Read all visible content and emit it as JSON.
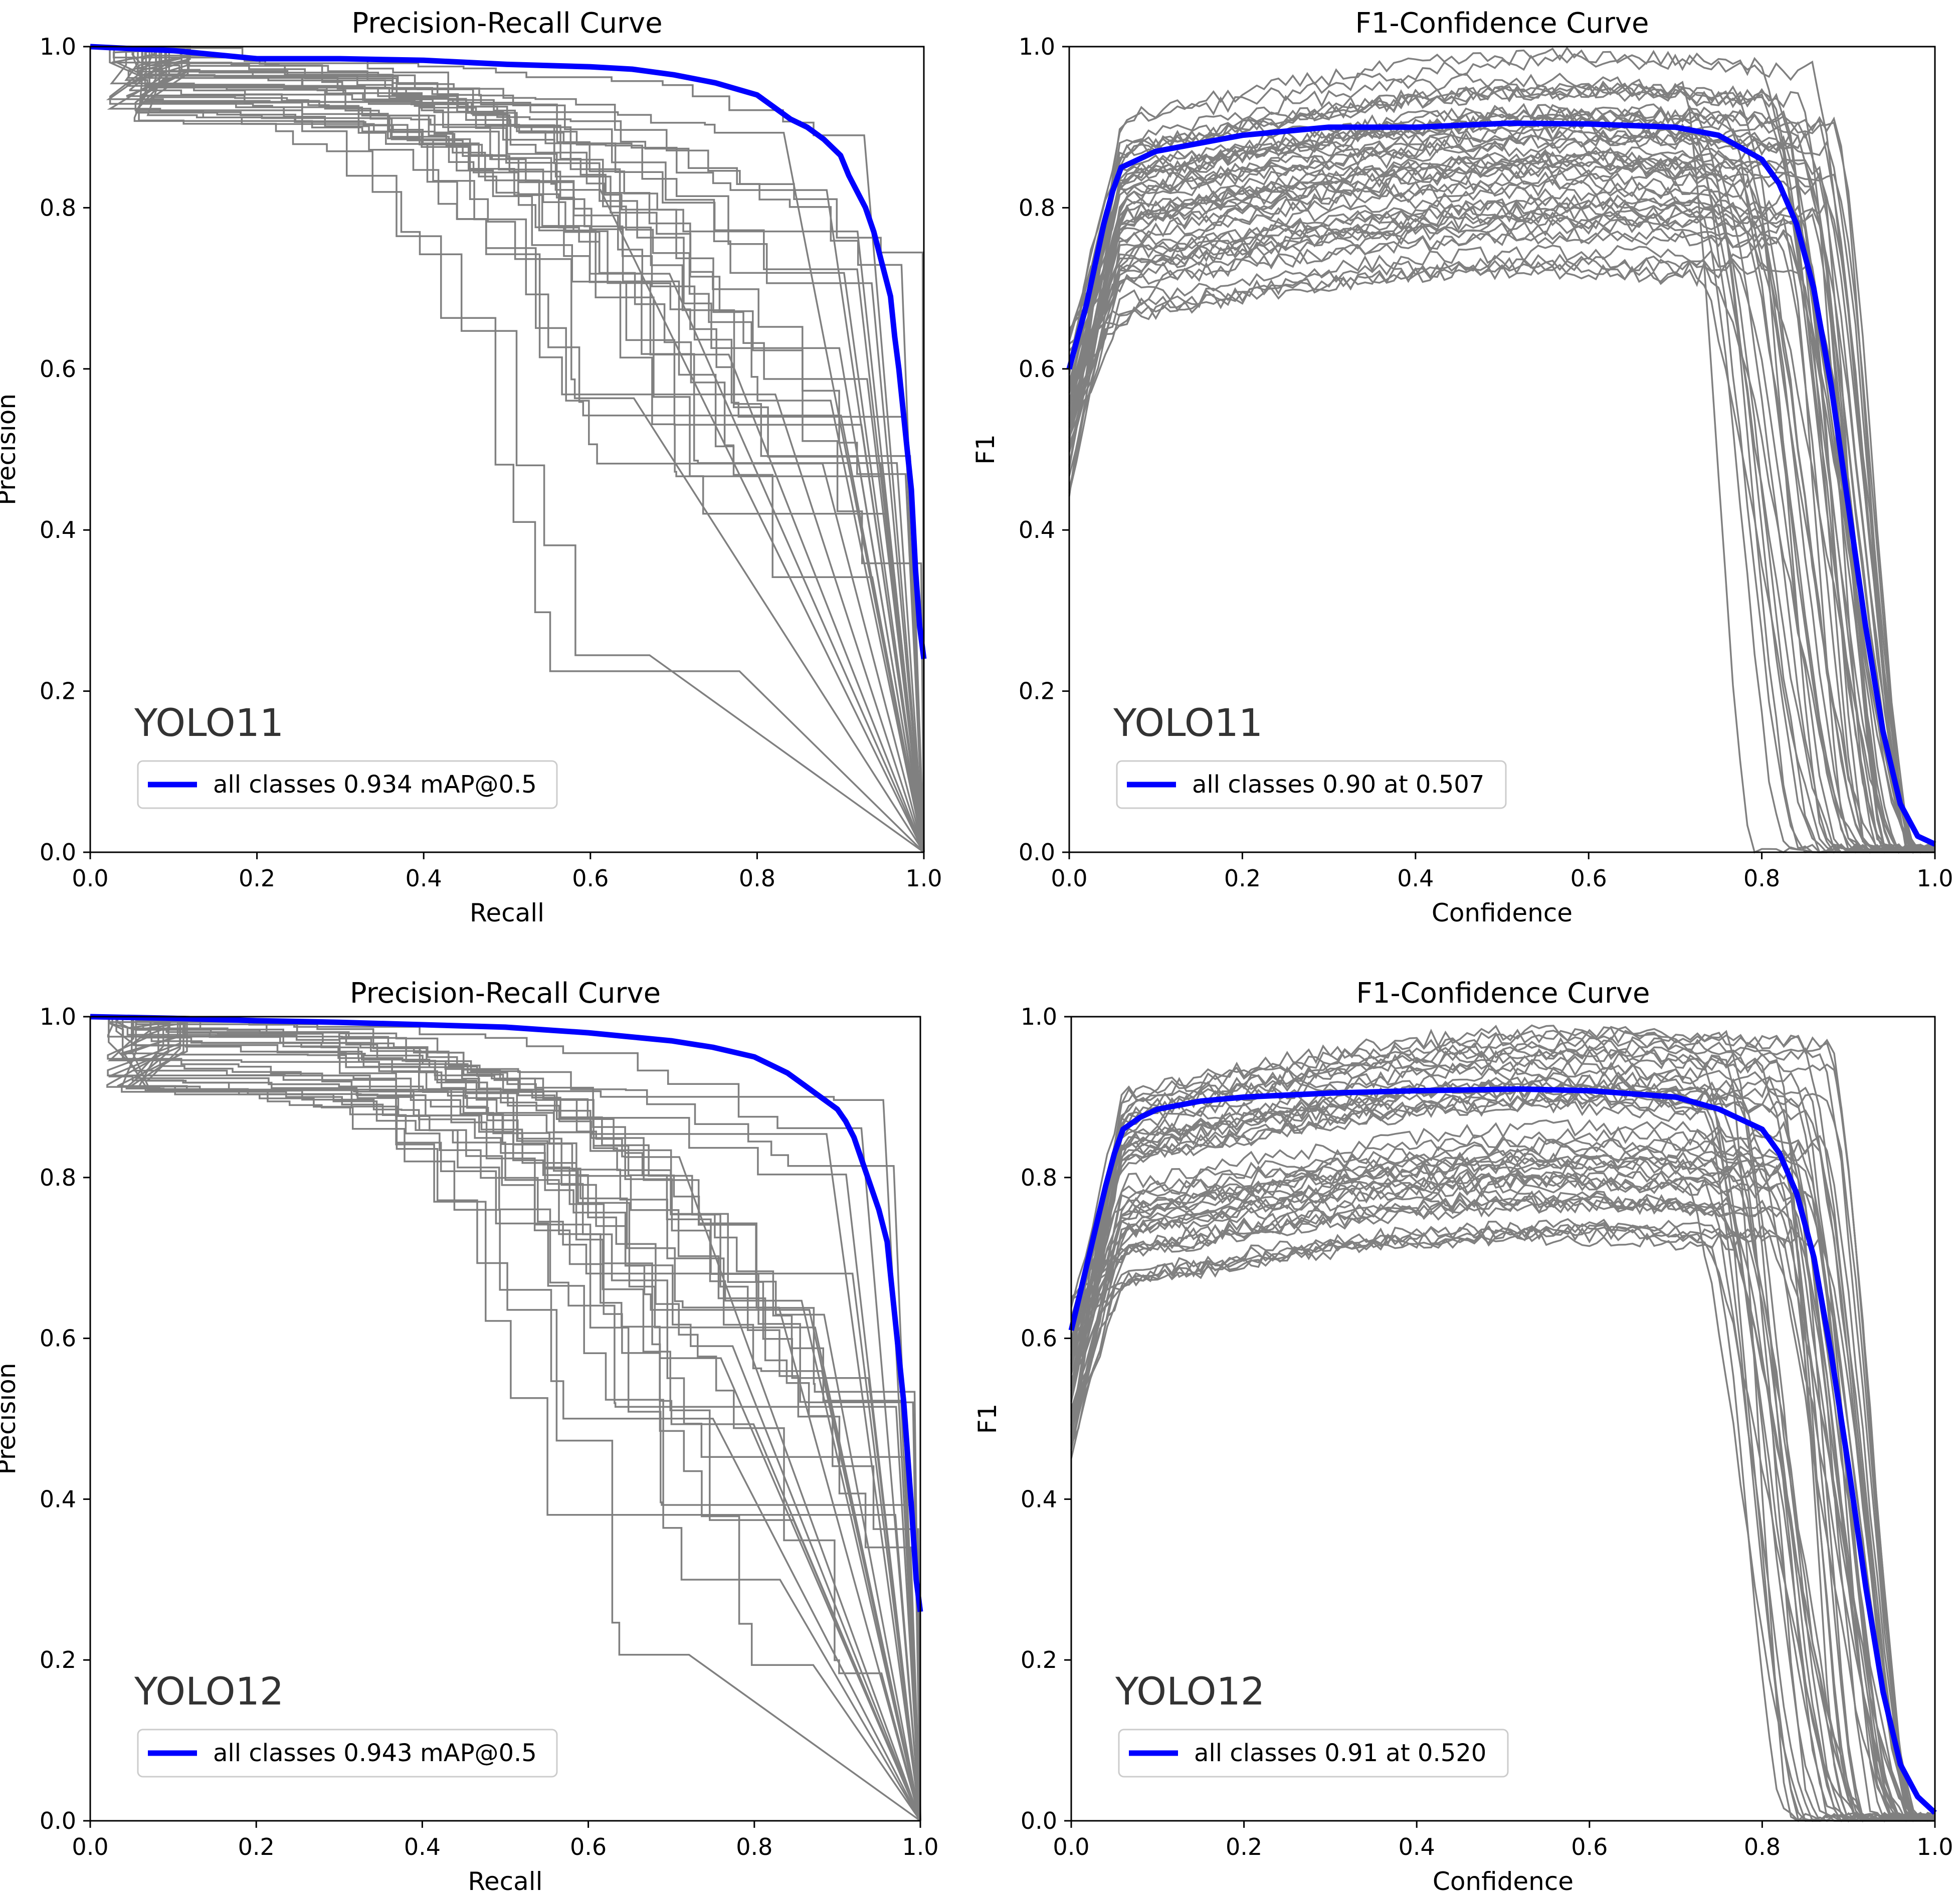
{
  "figure": {
    "background": "#ffffff",
    "colors": {
      "axis": "#000000",
      "class_curve": "#808080",
      "all_classes": "#0000ff",
      "model_label": "#333333",
      "legend_border": "#cccccc"
    }
  },
  "chart_data": [
    {
      "type": "line",
      "title": "Precision-Recall Curve",
      "xlabel": "Recall",
      "ylabel": "Precision",
      "xlim": [
        0,
        1
      ],
      "ylim": [
        0,
        1
      ],
      "xticks": [
        "0.0",
        "0.2",
        "0.4",
        "0.6",
        "0.8",
        "1.0"
      ],
      "yticks": [
        "0.0",
        "0.2",
        "0.4",
        "0.6",
        "0.8",
        "1.0"
      ],
      "model_label": "YOLO11",
      "legend": "all classes 0.934 mAP@0.5",
      "series": [
        {
          "name": "all classes 0.934 mAP@0.5",
          "x": [
            0,
            0.1,
            0.2,
            0.3,
            0.4,
            0.5,
            0.6,
            0.65,
            0.7,
            0.75,
            0.8,
            0.82,
            0.84,
            0.86,
            0.88,
            0.9,
            0.91,
            0.92,
            0.93,
            0.94,
            0.95,
            0.96,
            0.965,
            0.97,
            0.975,
            0.98,
            0.985,
            0.99,
            0.995,
            1.0
          ],
          "y": [
            1.0,
            0.995,
            0.985,
            0.985,
            0.983,
            0.978,
            0.975,
            0.972,
            0.965,
            0.955,
            0.94,
            0.925,
            0.91,
            0.9,
            0.885,
            0.865,
            0.84,
            0.82,
            0.8,
            0.77,
            0.73,
            0.69,
            0.64,
            0.6,
            0.55,
            0.5,
            0.45,
            0.35,
            0.28,
            0.24
          ]
        }
      ]
    },
    {
      "type": "line",
      "title": "F1-Confidence Curve",
      "xlabel": "Confidence",
      "ylabel": "F1",
      "xlim": [
        0,
        1
      ],
      "ylim": [
        0,
        1
      ],
      "xticks": [
        "0.0",
        "0.2",
        "0.4",
        "0.6",
        "0.8",
        "1.0"
      ],
      "yticks": [
        "0.0",
        "0.2",
        "0.4",
        "0.6",
        "0.8",
        "1.0"
      ],
      "model_label": "YOLO11",
      "legend": "all classes 0.90 at 0.507",
      "series": [
        {
          "name": "all classes 0.90 at 0.507",
          "x": [
            0,
            0.02,
            0.04,
            0.05,
            0.06,
            0.08,
            0.1,
            0.15,
            0.2,
            0.3,
            0.4,
            0.507,
            0.6,
            0.7,
            0.75,
            0.8,
            0.82,
            0.84,
            0.86,
            0.88,
            0.9,
            0.92,
            0.94,
            0.96,
            0.98,
            1.0
          ],
          "y": [
            0.6,
            0.68,
            0.78,
            0.82,
            0.85,
            0.86,
            0.87,
            0.88,
            0.89,
            0.9,
            0.9,
            0.905,
            0.904,
            0.9,
            0.89,
            0.86,
            0.83,
            0.78,
            0.7,
            0.58,
            0.43,
            0.28,
            0.15,
            0.06,
            0.02,
            0.01
          ]
        }
      ]
    },
    {
      "type": "line",
      "title": "Precision-Recall Curve",
      "xlabel": "Recall",
      "ylabel": "Precision",
      "xlim": [
        0,
        1
      ],
      "ylim": [
        0,
        1
      ],
      "xticks": [
        "0.0",
        "0.2",
        "0.4",
        "0.6",
        "0.8",
        "1.0"
      ],
      "yticks": [
        "0.0",
        "0.2",
        "0.4",
        "0.6",
        "0.8",
        "1.0"
      ],
      "model_label": "YOLO12",
      "legend": "all classes 0.943 mAP@0.5",
      "series": [
        {
          "name": "all classes 0.943 mAP@0.5",
          "x": [
            0,
            0.1,
            0.2,
            0.3,
            0.4,
            0.5,
            0.6,
            0.65,
            0.7,
            0.75,
            0.8,
            0.82,
            0.84,
            0.86,
            0.88,
            0.9,
            0.91,
            0.92,
            0.93,
            0.94,
            0.95,
            0.96,
            0.965,
            0.97,
            0.975,
            0.98,
            0.985,
            0.99,
            0.995,
            1.0
          ],
          "y": [
            1.0,
            0.998,
            0.995,
            0.993,
            0.99,
            0.987,
            0.98,
            0.975,
            0.97,
            0.962,
            0.95,
            0.94,
            0.93,
            0.915,
            0.9,
            0.885,
            0.87,
            0.85,
            0.82,
            0.79,
            0.76,
            0.72,
            0.67,
            0.62,
            0.57,
            0.52,
            0.45,
            0.38,
            0.3,
            0.26
          ]
        }
      ]
    },
    {
      "type": "line",
      "title": "F1-Confidence Curve",
      "xlabel": "Confidence",
      "ylabel": "F1",
      "xlim": [
        0,
        1
      ],
      "ylim": [
        0,
        1
      ],
      "xticks": [
        "0.0",
        "0.2",
        "0.4",
        "0.6",
        "0.8",
        "1.0"
      ],
      "yticks": [
        "0.0",
        "0.2",
        "0.4",
        "0.6",
        "0.8",
        "1.0"
      ],
      "model_label": "YOLO12",
      "legend": "all classes 0.91 at 0.520",
      "series": [
        {
          "name": "all classes 0.91 at 0.520",
          "x": [
            0,
            0.02,
            0.04,
            0.05,
            0.06,
            0.08,
            0.1,
            0.15,
            0.2,
            0.3,
            0.4,
            0.52,
            0.6,
            0.7,
            0.75,
            0.8,
            0.82,
            0.84,
            0.86,
            0.88,
            0.9,
            0.92,
            0.94,
            0.96,
            0.98,
            1.0
          ],
          "y": [
            0.61,
            0.7,
            0.79,
            0.83,
            0.86,
            0.875,
            0.885,
            0.895,
            0.9,
            0.905,
            0.908,
            0.91,
            0.908,
            0.9,
            0.885,
            0.86,
            0.83,
            0.78,
            0.7,
            0.58,
            0.44,
            0.29,
            0.16,
            0.07,
            0.03,
            0.01
          ]
        }
      ]
    }
  ]
}
